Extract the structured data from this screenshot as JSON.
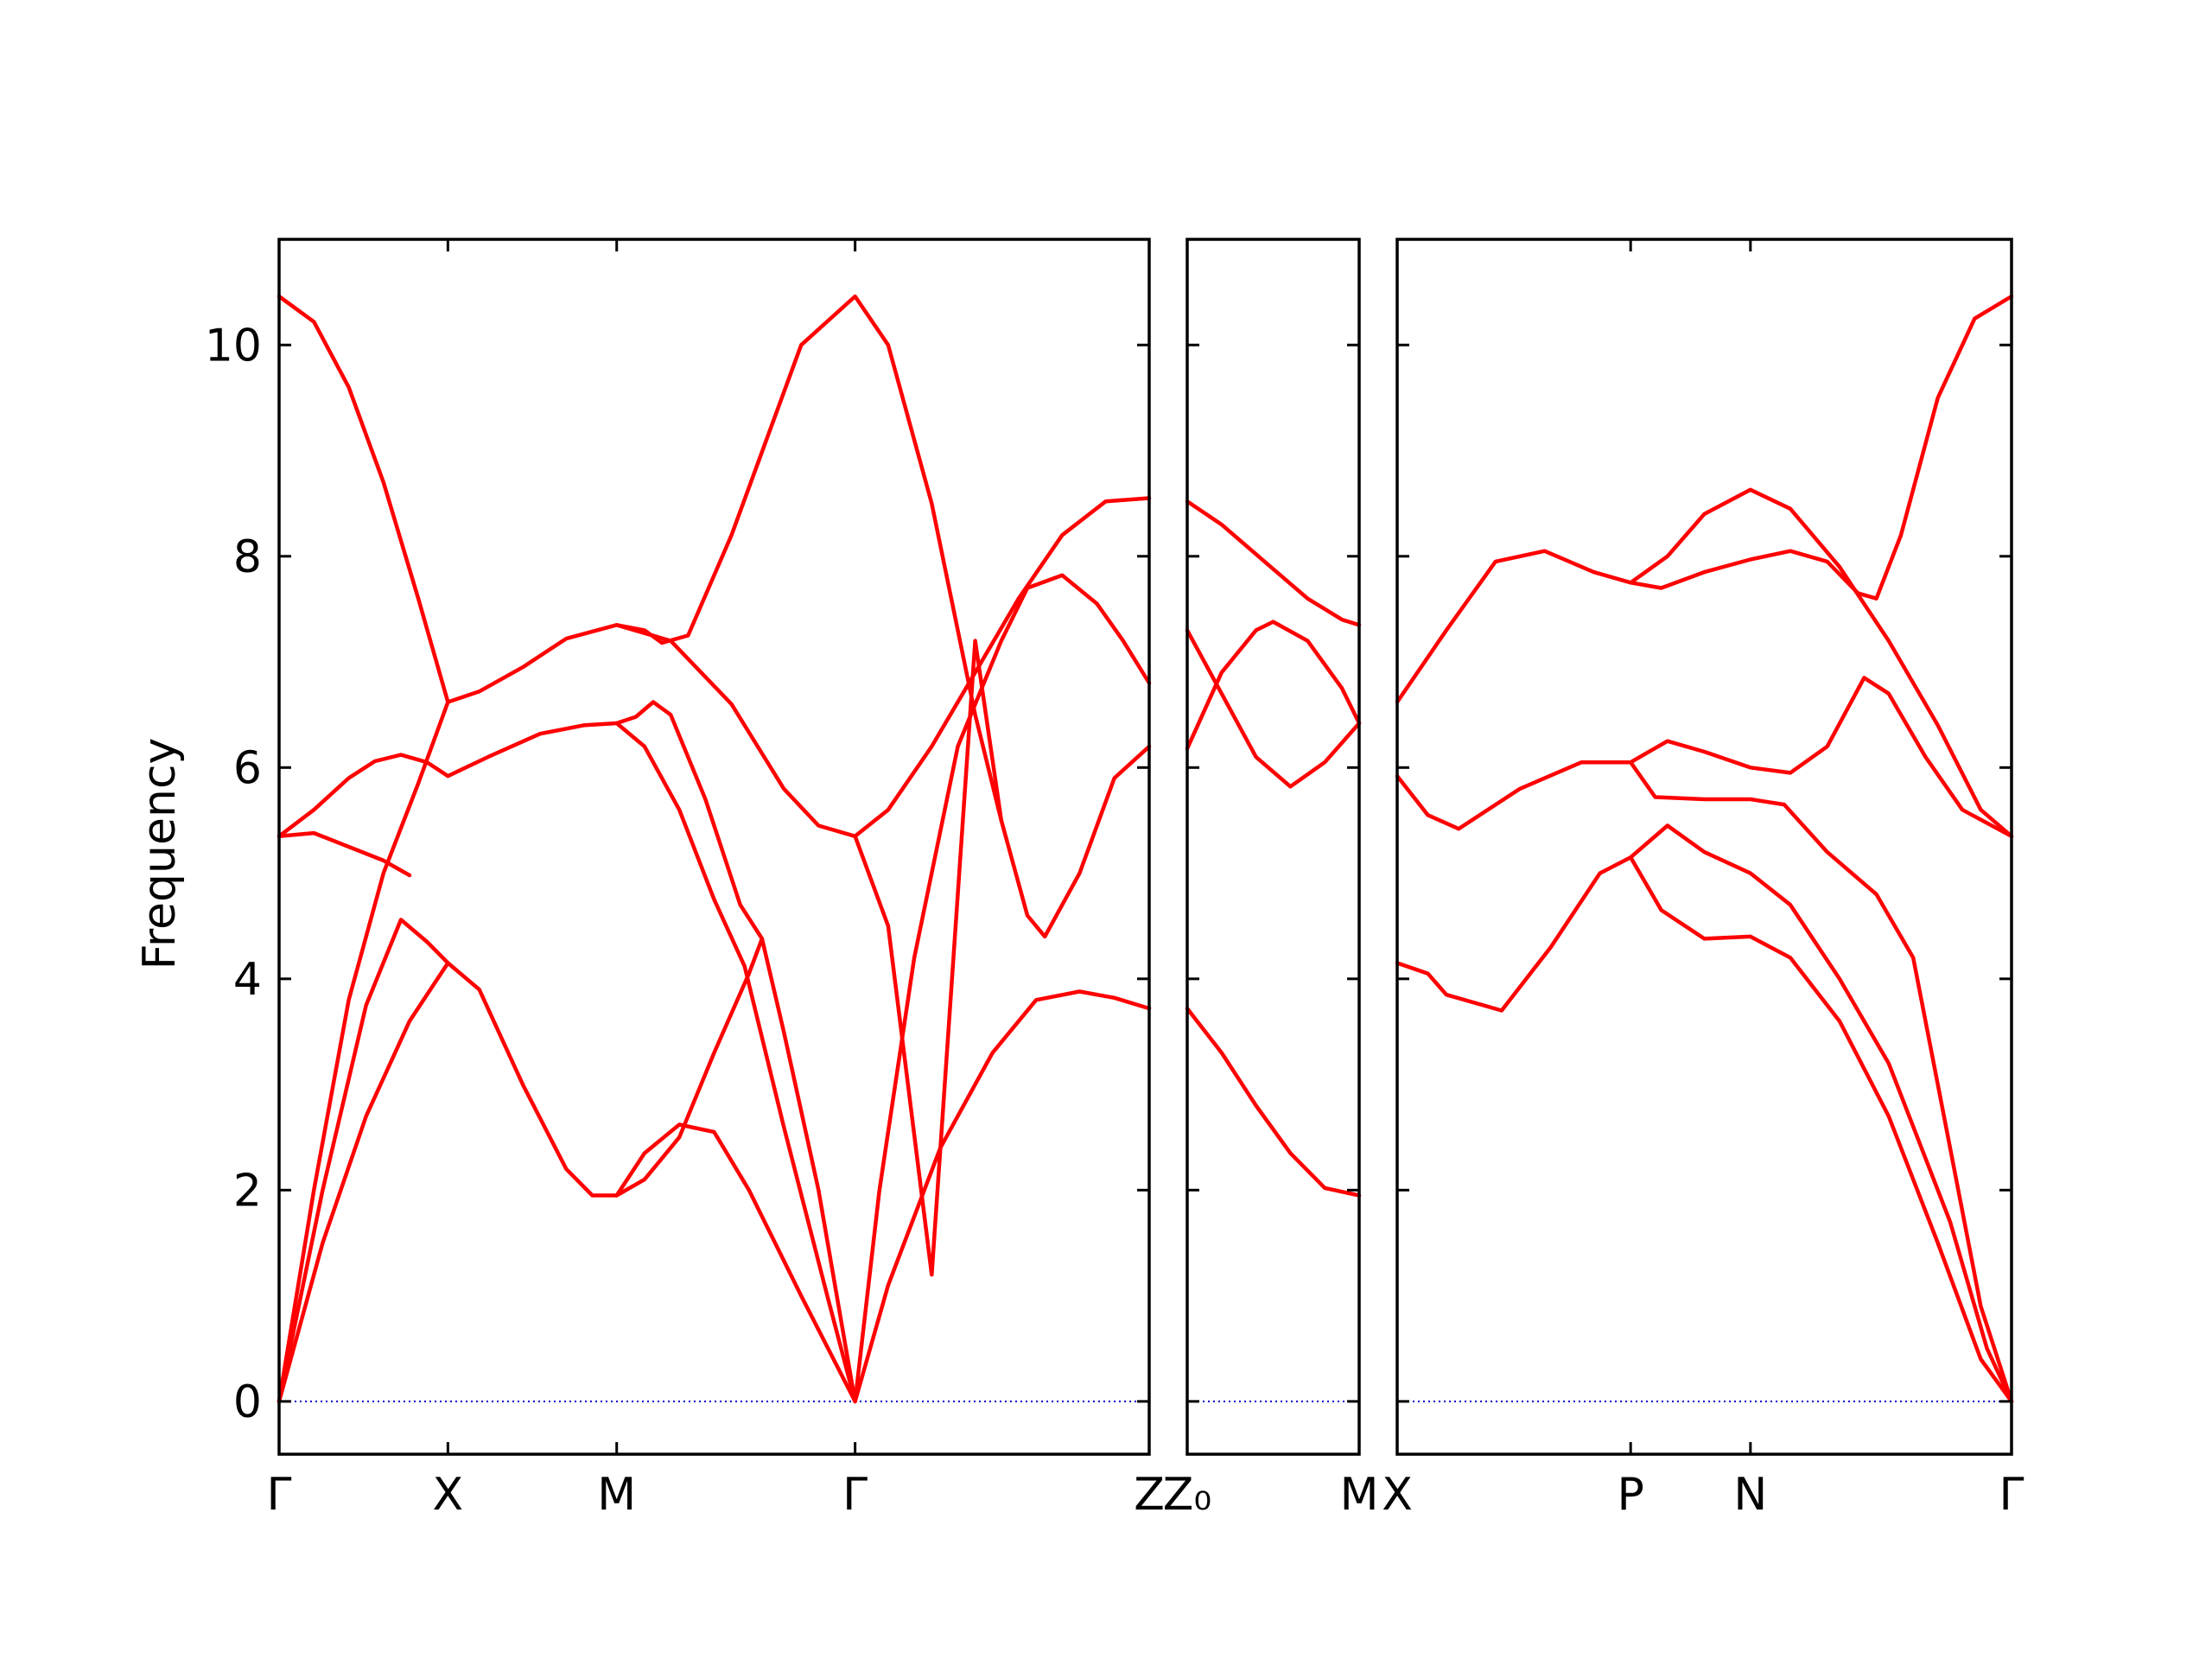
{
  "chart_data": {
    "type": "line",
    "title": "",
    "ylabel": "Frequency",
    "xlabel": "",
    "ylim": [
      -0.5,
      11.0
    ],
    "yticks": [
      0,
      2,
      4,
      6,
      8,
      10
    ],
    "grid": false,
    "line_color": "#ff0000",
    "zero_line_color": "#0000cc",
    "panels": [
      {
        "name": "path-gamma-x-m-gamma-z",
        "labels": [
          {
            "x": 0.0,
            "text": "Γ"
          },
          {
            "x": 0.194,
            "text": "X"
          },
          {
            "x": 0.388,
            "text": "M"
          },
          {
            "x": 0.662,
            "text": "Γ"
          },
          {
            "x": 1.0,
            "text": "Z"
          }
        ],
        "bands": [
          [
            [
              0.0,
              10.46
            ],
            [
              0.04,
              10.22
            ],
            [
              0.08,
              9.6
            ],
            [
              0.12,
              8.7
            ],
            [
              0.16,
              7.6
            ],
            [
              0.194,
              6.62
            ]
          ],
          [
            [
              0.0,
              5.35
            ],
            [
              0.04,
              5.38
            ],
            [
              0.08,
              5.25
            ],
            [
              0.12,
              5.12
            ],
            [
              0.15,
              4.98
            ]
          ],
          [
            [
              0.0,
              5.35
            ],
            [
              0.04,
              5.6
            ],
            [
              0.08,
              5.9
            ],
            [
              0.11,
              6.06
            ],
            [
              0.14,
              6.12
            ],
            [
              0.17,
              6.05
            ],
            [
              0.194,
              5.92
            ]
          ],
          [
            [
              0.0,
              0.0
            ],
            [
              0.05,
              2.0
            ],
            [
              0.1,
              3.75
            ],
            [
              0.14,
              4.56
            ],
            [
              0.17,
              4.35
            ],
            [
              0.194,
              4.15
            ]
          ],
          [
            [
              0.0,
              0.0
            ],
            [
              0.05,
              1.5
            ],
            [
              0.1,
              2.7
            ],
            [
              0.15,
              3.6
            ],
            [
              0.194,
              4.15
            ]
          ],
          [
            [
              0.0,
              0.0
            ],
            [
              0.04,
              2.0
            ],
            [
              0.08,
              3.8
            ],
            [
              0.12,
              5.0
            ],
            [
              0.16,
              5.85
            ],
            [
              0.194,
              6.62
            ]
          ],
          [
            [
              0.194,
              6.62
            ],
            [
              0.23,
              6.72
            ],
            [
              0.28,
              6.95
            ],
            [
              0.33,
              7.22
            ],
            [
              0.388,
              7.35
            ],
            [
              0.42,
              7.3
            ],
            [
              0.44,
              7.18
            ],
            [
              0.47,
              7.25
            ],
            [
              0.52,
              8.2
            ],
            [
              0.56,
              9.1
            ],
            [
              0.6,
              10.0
            ],
            [
              0.662,
              10.46
            ],
            [
              0.7,
              10.0
            ],
            [
              0.75,
              8.5
            ],
            [
              0.8,
              6.5
            ],
            [
              0.83,
              5.5
            ],
            [
              0.86,
              4.6
            ],
            [
              0.88,
              4.4
            ],
            [
              0.92,
              5.0
            ],
            [
              0.96,
              5.9
            ],
            [
              1.0,
              6.2
            ]
          ],
          [
            [
              0.194,
              5.92
            ],
            [
              0.24,
              6.1
            ],
            [
              0.3,
              6.32
            ],
            [
              0.35,
              6.4
            ],
            [
              0.388,
              6.42
            ],
            [
              0.41,
              6.48
            ],
            [
              0.43,
              6.62
            ],
            [
              0.45,
              6.5
            ],
            [
              0.49,
              5.7
            ],
            [
              0.53,
              4.7
            ],
            [
              0.555,
              4.38
            ],
            [
              0.58,
              3.5
            ],
            [
              0.62,
              2.0
            ],
            [
              0.662,
              0.0
            ]
          ],
          [
            [
              0.194,
              4.15
            ],
            [
              0.23,
              3.9
            ],
            [
              0.28,
              3.0
            ],
            [
              0.33,
              2.2
            ],
            [
              0.36,
              1.95
            ],
            [
              0.388,
              1.95
            ],
            [
              0.42,
              2.1
            ],
            [
              0.46,
              2.5
            ],
            [
              0.5,
              3.3
            ],
            [
              0.54,
              4.05
            ],
            [
              0.555,
              4.38
            ]
          ],
          [
            [
              0.388,
              7.35
            ],
            [
              0.45,
              7.2
            ],
            [
              0.52,
              6.6
            ],
            [
              0.58,
              5.8
            ],
            [
              0.62,
              5.45
            ],
            [
              0.662,
              5.35
            ],
            [
              0.7,
              5.6
            ],
            [
              0.75,
              6.2
            ],
            [
              0.8,
              6.9
            ],
            [
              0.85,
              7.6
            ],
            [
              0.9,
              8.2
            ],
            [
              0.95,
              8.52
            ],
            [
              1.0,
              8.55
            ]
          ],
          [
            [
              0.388,
              6.42
            ],
            [
              0.42,
              6.2
            ],
            [
              0.46,
              5.6
            ],
            [
              0.5,
              4.75
            ],
            [
              0.535,
              4.12
            ]
          ],
          [
            [
              0.388,
              1.95
            ],
            [
              0.42,
              2.35
            ],
            [
              0.46,
              2.62
            ],
            [
              0.5,
              2.55
            ],
            [
              0.54,
              2.0
            ],
            [
              0.6,
              1.0
            ],
            [
              0.662,
              0.0
            ]
          ],
          [
            [
              0.535,
              4.12
            ],
            [
              0.58,
              2.6
            ],
            [
              0.63,
              1.0
            ],
            [
              0.662,
              0.0
            ]
          ],
          [
            [
              0.662,
              5.35
            ],
            [
              0.7,
              4.5
            ],
            [
              0.75,
              1.2
            ],
            [
              0.8,
              7.2
            ],
            [
              0.83,
              5.5
            ]
          ],
          [
            [
              0.662,
              0.0
            ],
            [
              0.7,
              1.1
            ],
            [
              0.76,
              2.4
            ],
            [
              0.82,
              3.3
            ],
            [
              0.87,
              3.8
            ],
            [
              0.92,
              3.88
            ],
            [
              0.96,
              3.82
            ],
            [
              1.0,
              3.72
            ]
          ],
          [
            [
              0.662,
              0.0
            ],
            [
              0.69,
              2.0
            ],
            [
              0.73,
              4.2
            ],
            [
              0.78,
              6.2
            ],
            [
              0.83,
              7.2
            ],
            [
              0.86,
              7.7
            ],
            [
              0.9,
              7.82
            ],
            [
              0.94,
              7.55
            ],
            [
              0.97,
              7.2
            ],
            [
              1.0,
              6.8
            ]
          ]
        ]
      },
      {
        "name": "path-z0-m",
        "labels": [
          {
            "x": 0.0,
            "text": "Z₀"
          },
          {
            "x": 1.0,
            "text": "M"
          }
        ],
        "bands": [
          [
            [
              0.0,
              8.52
            ],
            [
              0.2,
              8.3
            ],
            [
              0.45,
              7.95
            ],
            [
              0.7,
              7.6
            ],
            [
              0.9,
              7.4
            ],
            [
              1.0,
              7.35
            ]
          ],
          [
            [
              0.0,
              7.3
            ],
            [
              0.2,
              6.7
            ],
            [
              0.4,
              6.1
            ],
            [
              0.6,
              5.82
            ],
            [
              0.8,
              6.05
            ],
            [
              1.0,
              6.42
            ]
          ],
          [
            [
              0.0,
              6.18
            ],
            [
              0.2,
              6.9
            ],
            [
              0.4,
              7.3
            ],
            [
              0.5,
              7.38
            ],
            [
              0.7,
              7.2
            ],
            [
              0.9,
              6.75
            ],
            [
              1.0,
              6.42
            ]
          ],
          [
            [
              0.0,
              3.72
            ],
            [
              0.2,
              3.3
            ],
            [
              0.4,
              2.8
            ],
            [
              0.6,
              2.35
            ],
            [
              0.8,
              2.02
            ],
            [
              1.0,
              1.95
            ]
          ]
        ]
      },
      {
        "name": "path-x-p-n-gamma",
        "labels": [
          {
            "x": 0.0,
            "text": "X"
          },
          {
            "x": 0.38,
            "text": "P"
          },
          {
            "x": 0.575,
            "text": "N"
          },
          {
            "x": 1.0,
            "text": "Γ"
          }
        ],
        "bands": [
          [
            [
              0.0,
              6.62
            ],
            [
              0.08,
              7.3
            ],
            [
              0.16,
              7.95
            ],
            [
              0.24,
              8.05
            ],
            [
              0.32,
              7.85
            ],
            [
              0.38,
              7.75
            ],
            [
              0.44,
              8.0
            ],
            [
              0.5,
              8.4
            ],
            [
              0.575,
              8.63
            ],
            [
              0.64,
              8.45
            ],
            [
              0.72,
              7.9
            ],
            [
              0.8,
              7.2
            ],
            [
              0.88,
              6.4
            ],
            [
              0.95,
              5.6
            ],
            [
              1.0,
              5.35
            ]
          ],
          [
            [
              0.38,
              7.75
            ],
            [
              0.43,
              7.7
            ],
            [
              0.5,
              7.85
            ],
            [
              0.575,
              7.97
            ],
            [
              0.64,
              8.05
            ],
            [
              0.7,
              7.95
            ],
            [
              0.75,
              7.65
            ],
            [
              0.78,
              7.6
            ],
            [
              0.82,
              8.2
            ],
            [
              0.88,
              9.5
            ],
            [
              0.94,
              10.25
            ],
            [
              1.0,
              10.46
            ]
          ],
          [
            [
              0.0,
              5.92
            ],
            [
              0.05,
              5.55
            ],
            [
              0.1,
              5.42
            ],
            [
              0.2,
              5.8
            ],
            [
              0.3,
              6.05
            ],
            [
              0.38,
              6.05
            ],
            [
              0.44,
              6.25
            ],
            [
              0.5,
              6.15
            ],
            [
              0.575,
              6.0
            ],
            [
              0.64,
              5.95
            ],
            [
              0.7,
              6.2
            ],
            [
              0.76,
              6.85
            ],
            [
              0.8,
              6.7
            ],
            [
              0.86,
              6.1
            ],
            [
              0.92,
              5.6
            ],
            [
              1.0,
              5.35
            ]
          ],
          [
            [
              0.38,
              6.05
            ],
            [
              0.42,
              5.72
            ],
            [
              0.5,
              5.7
            ],
            [
              0.575,
              5.7
            ],
            [
              0.63,
              5.65
            ],
            [
              0.7,
              5.2
            ],
            [
              0.78,
              4.8
            ],
            [
              0.84,
              4.2
            ],
            [
              0.9,
              2.4
            ],
            [
              0.95,
              0.9
            ],
            [
              1.0,
              0.0
            ]
          ],
          [
            [
              0.0,
              4.15
            ],
            [
              0.05,
              4.05
            ],
            [
              0.08,
              3.85
            ],
            [
              0.17,
              3.7
            ],
            [
              0.25,
              4.3
            ],
            [
              0.33,
              5.0
            ],
            [
              0.38,
              5.15
            ],
            [
              0.44,
              5.45
            ],
            [
              0.5,
              5.2
            ],
            [
              0.575,
              5.0
            ],
            [
              0.64,
              4.7
            ],
            [
              0.72,
              4.0
            ],
            [
              0.8,
              3.2
            ],
            [
              0.9,
              1.7
            ],
            [
              0.96,
              0.5
            ],
            [
              1.0,
              0.0
            ]
          ],
          [
            [
              0.38,
              5.15
            ],
            [
              0.43,
              4.65
            ],
            [
              0.5,
              4.38
            ],
            [
              0.575,
              4.4
            ],
            [
              0.64,
              4.2
            ],
            [
              0.72,
              3.6
            ],
            [
              0.8,
              2.7
            ],
            [
              0.88,
              1.5
            ],
            [
              0.95,
              0.4
            ],
            [
              1.0,
              0.0
            ]
          ]
        ]
      }
    ]
  }
}
